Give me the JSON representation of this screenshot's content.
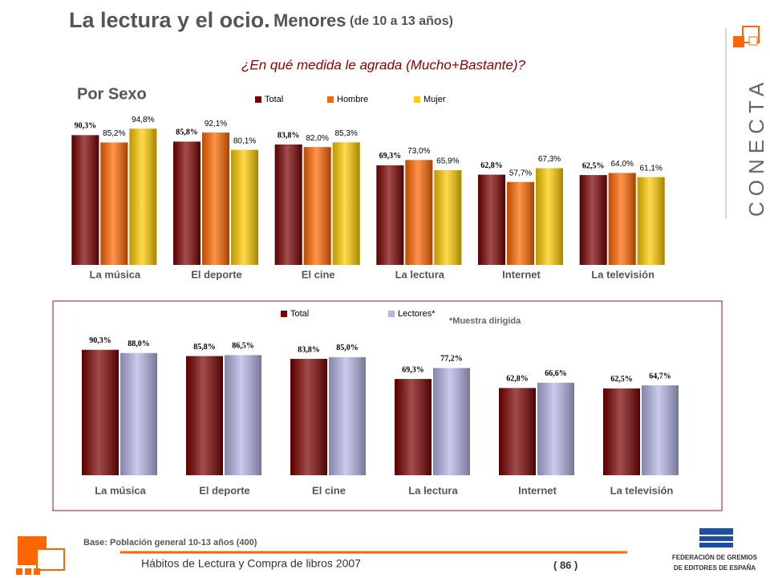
{
  "header": {
    "title": "La lectura y el ocio.",
    "title_part2": "Menores",
    "title_part3": "(de 10 a 13 años)",
    "question": "¿En qué medida le agrada (Mucho+Bastante)?",
    "section": "Por Sexo"
  },
  "logo": "CONECTA",
  "note": "*Muestra dirigida",
  "base": "Base: Población general 10-13 años (400)",
  "footer": {
    "text": "Hábitos de Lectura y Compra de libros 2007",
    "page": "( 86 )",
    "org_line1": "FEDERACIÓN DE GREMIOS",
    "org_line2": "DE EDITORES DE ESPAÑA"
  },
  "chart_data": [
    {
      "type": "bar",
      "categories": [
        "La música",
        "El deporte",
        "El cine",
        "La lectura",
        "Internet",
        "La televisión"
      ],
      "series": [
        {
          "name": "Total",
          "color": "#7a0000",
          "values": [
            90.3,
            85.8,
            83.8,
            69.3,
            62.8,
            62.5
          ],
          "value_labels": [
            "90,3%",
            "85,8%",
            "83,8%",
            "69,3%",
            "62,8%",
            "62,5%"
          ]
        },
        {
          "name": "Hombre",
          "color": "#ff6600",
          "values": [
            85.2,
            92.1,
            82.0,
            73.0,
            57.7,
            64.0
          ],
          "value_labels": [
            "85,2%",
            "92,1%",
            "82,0%",
            "73,0%",
            "57,7%",
            "64,0%"
          ]
        },
        {
          "name": "Mujer",
          "color": "#ffcc00",
          "values": [
            94.8,
            80.1,
            85.3,
            65.9,
            67.3,
            61.1
          ],
          "value_labels": [
            "94,8%",
            "80,1%",
            "85,3%",
            "65,9%",
            "67,3%",
            "61,1%"
          ]
        }
      ]
    },
    {
      "type": "bar",
      "categories": [
        "La música",
        "El deporte",
        "El cine",
        "La lectura",
        "Internet",
        "La televisión"
      ],
      "series": [
        {
          "name": "Total",
          "color": "#7a0000",
          "values": [
            90.3,
            85.8,
            83.8,
            69.3,
            62.8,
            62.5
          ],
          "value_labels": [
            "90,3%",
            "85,8%",
            "83,8%",
            "69,3%",
            "62,8%",
            "62,5%"
          ]
        },
        {
          "name": "Lectores*",
          "color": "#b4b4e6",
          "values": [
            88.0,
            86.5,
            85.0,
            77.2,
            66.6,
            64.7
          ],
          "value_labels": [
            "88,0%",
            "86,5%",
            "85,0%",
            "77,2%",
            "66,6%",
            "64,7%"
          ]
        }
      ]
    }
  ]
}
